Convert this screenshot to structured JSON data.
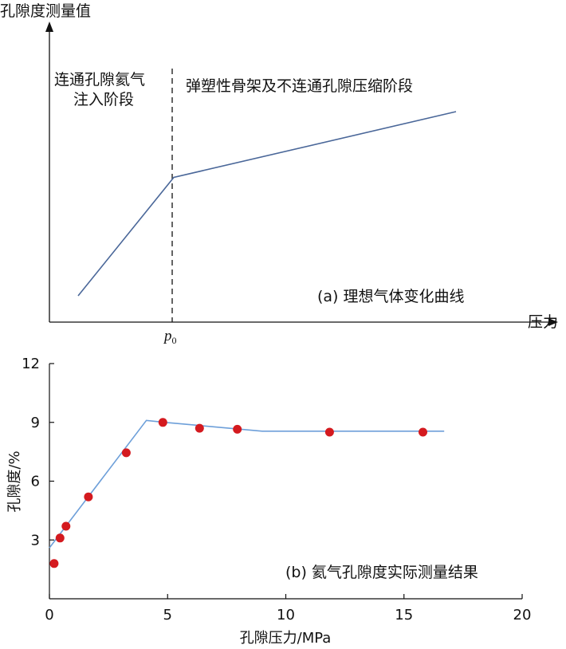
{
  "chart_data": [
    {
      "type": "line",
      "title": "",
      "panel_label": "(a) 理想气体变化曲线",
      "ylabel": "孔隙度测量值",
      "xlabel": "压力",
      "x_tick_labels": [
        {
          "label": "p",
          "subscript": "0"
        }
      ],
      "annotations": [
        "连通孔隙氦气",
        "注入阶段",
        "弹塑性骨架及不连通孔隙压缩阶段"
      ],
      "reference_line": {
        "style": "dashed",
        "at": "p0"
      },
      "series": [
        {
          "x": [
            0.12,
            0.52,
            1.7
          ],
          "y": [
            0.1,
            0.55,
            0.8
          ]
        }
      ],
      "line_color": "#4a6799",
      "axes_with_arrows": true,
      "numeric_ticks": false
    },
    {
      "type": "scatter",
      "title": "",
      "panel_label": "(b) 氦气孔隙度实际测量结果",
      "xlabel": "孔隙压力/MPa",
      "ylabel": "孔隙度/%",
      "xlim": [
        0,
        20
      ],
      "ylim": [
        0,
        12
      ],
      "x_ticks": [
        0,
        5,
        10,
        15,
        20
      ],
      "y_ticks": [
        3,
        6,
        9,
        12
      ],
      "grid": false,
      "points": {
        "x": [
          0.2,
          0.45,
          0.7,
          1.65,
          3.25,
          4.8,
          6.35,
          7.95,
          11.85,
          15.8
        ],
        "y": [
          1.8,
          3.1,
          3.7,
          5.2,
          7.45,
          9.0,
          8.7,
          8.65,
          8.5,
          8.5
        ]
      },
      "fit_line": {
        "x": [
          0.0,
          4.1,
          4.9,
          9.0,
          9.0,
          16.7
        ],
        "y": [
          2.6,
          9.1,
          9.0,
          8.55,
          8.55,
          8.55
        ]
      },
      "point_color": "#d41a1f",
      "fit_color": "#6d9fd9"
    }
  ]
}
